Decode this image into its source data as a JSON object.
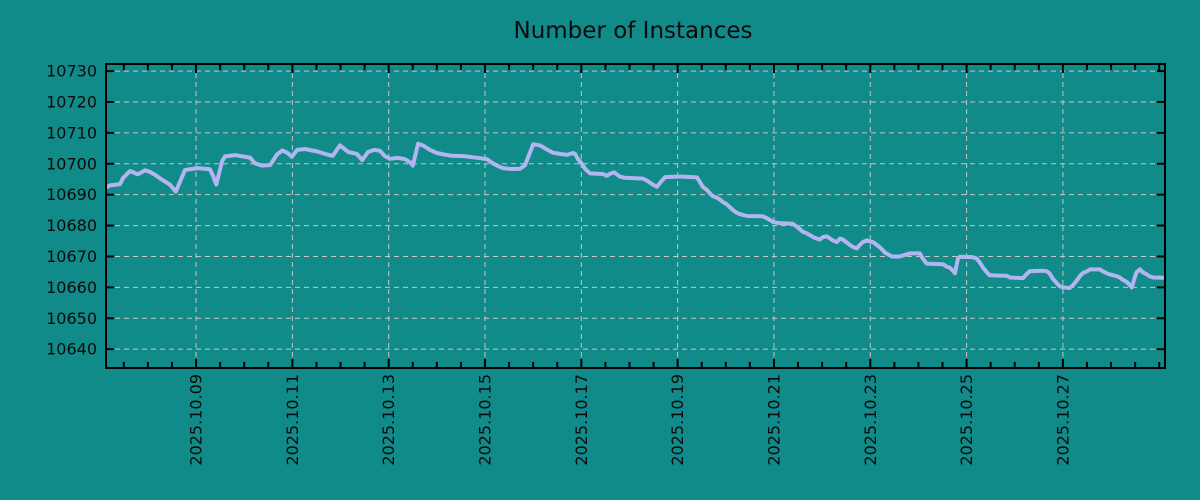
{
  "chart_data": {
    "type": "line",
    "title": "Number of Instances",
    "legend": "none",
    "grid": "dashed",
    "colors": {
      "background": "#118a8a",
      "line": "#b2b5ef",
      "grid": "#c6c6c6",
      "axis": "#000000",
      "text": "#0b0b0b"
    },
    "x_axis": {
      "unit": "day-of-october-2025",
      "tick_labels": [
        "2025.10.09",
        "2025.10.11",
        "2025.10.13",
        "2025.10.15",
        "2025.10.17",
        "2025.10.19",
        "2025.10.21",
        "2025.10.23",
        "2025.10.25",
        "2025.10.27"
      ],
      "tick_days": [
        9,
        11,
        13,
        15,
        17,
        19,
        21,
        23,
        25,
        27
      ],
      "minor_tick_interval_days": 0.5,
      "range_days": [
        7.13,
        29.12
      ]
    },
    "y_axis": {
      "tick_values": [
        10640,
        10650,
        10660,
        10670,
        10680,
        10690,
        10700,
        10710,
        10720,
        10730
      ],
      "range": [
        10633.9,
        10732.3
      ]
    },
    "series": [
      {
        "name": "",
        "color": "#b2b5ef",
        "points": [
          [
            7.13,
            10692.3
          ],
          [
            7.21,
            10693.0
          ],
          [
            7.42,
            10693.4
          ],
          [
            7.48,
            10695.3
          ],
          [
            7.57,
            10696.8
          ],
          [
            7.63,
            10697.6
          ],
          [
            7.69,
            10697.3
          ],
          [
            7.78,
            10696.6
          ],
          [
            7.84,
            10697.0
          ],
          [
            7.94,
            10697.9
          ],
          [
            8.04,
            10697.4
          ],
          [
            8.15,
            10696.4
          ],
          [
            8.25,
            10695.3
          ],
          [
            8.36,
            10694.2
          ],
          [
            8.46,
            10693.2
          ],
          [
            8.52,
            10692.1
          ],
          [
            8.58,
            10691.0
          ],
          [
            8.71,
            10695.8
          ],
          [
            8.77,
            10698.0
          ],
          [
            9.03,
            10698.6
          ],
          [
            9.29,
            10698.2
          ],
          [
            9.35,
            10696.2
          ],
          [
            9.42,
            10693.3
          ],
          [
            9.54,
            10700.8
          ],
          [
            9.6,
            10702.4
          ],
          [
            9.81,
            10702.8
          ],
          [
            10.12,
            10702.0
          ],
          [
            10.22,
            10700.2
          ],
          [
            10.37,
            10699.4
          ],
          [
            10.54,
            10699.6
          ],
          [
            10.68,
            10703.0
          ],
          [
            10.79,
            10704.3
          ],
          [
            10.89,
            10703.6
          ],
          [
            10.99,
            10702.3
          ],
          [
            11.1,
            10704.5
          ],
          [
            11.26,
            10704.8
          ],
          [
            11.41,
            10704.3
          ],
          [
            11.51,
            10704.0
          ],
          [
            11.72,
            10703.0
          ],
          [
            11.84,
            10702.6
          ],
          [
            11.99,
            10706.0
          ],
          [
            12.16,
            10703.8
          ],
          [
            12.34,
            10703.2
          ],
          [
            12.45,
            10701.2
          ],
          [
            12.57,
            10703.8
          ],
          [
            12.7,
            10704.5
          ],
          [
            12.82,
            10704.2
          ],
          [
            12.92,
            10702.5
          ],
          [
            13.03,
            10701.6
          ],
          [
            13.19,
            10701.9
          ],
          [
            13.34,
            10701.5
          ],
          [
            13.44,
            10700.5
          ],
          [
            13.5,
            10699.4
          ],
          [
            13.61,
            10706.5
          ],
          [
            13.73,
            10705.8
          ],
          [
            13.86,
            10704.5
          ],
          [
            14.0,
            10703.5
          ],
          [
            14.15,
            10703.0
          ],
          [
            14.31,
            10702.6
          ],
          [
            14.56,
            10702.5
          ],
          [
            14.75,
            10702.1
          ],
          [
            14.9,
            10701.8
          ],
          [
            15.04,
            10701.5
          ],
          [
            15.15,
            10700.3
          ],
          [
            15.25,
            10699.4
          ],
          [
            15.37,
            10698.6
          ],
          [
            15.56,
            10698.3
          ],
          [
            15.73,
            10698.4
          ],
          [
            15.83,
            10699.5
          ],
          [
            15.93,
            10703.5
          ],
          [
            16.0,
            10706.3
          ],
          [
            16.14,
            10706.0
          ],
          [
            16.29,
            10704.6
          ],
          [
            16.41,
            10703.6
          ],
          [
            16.56,
            10703.2
          ],
          [
            16.7,
            10702.9
          ],
          [
            16.83,
            10703.5
          ],
          [
            16.87,
            10703.2
          ],
          [
            16.93,
            10701.5
          ],
          [
            17.01,
            10700.0
          ],
          [
            17.08,
            10698.3
          ],
          [
            17.18,
            10696.9
          ],
          [
            17.45,
            10696.7
          ],
          [
            17.53,
            10696.1
          ],
          [
            17.61,
            10696.9
          ],
          [
            17.68,
            10697.2
          ],
          [
            17.8,
            10695.9
          ],
          [
            17.89,
            10695.5
          ],
          [
            18.28,
            10695.2
          ],
          [
            18.38,
            10694.4
          ],
          [
            18.49,
            10693.2
          ],
          [
            18.57,
            10692.6
          ],
          [
            18.65,
            10694.1
          ],
          [
            18.74,
            10695.7
          ],
          [
            19.05,
            10695.9
          ],
          [
            19.4,
            10695.6
          ],
          [
            19.46,
            10694.2
          ],
          [
            19.52,
            10692.6
          ],
          [
            19.61,
            10691.5
          ],
          [
            19.67,
            10690.4
          ],
          [
            19.73,
            10689.5
          ],
          [
            19.81,
            10689.1
          ],
          [
            19.88,
            10688.4
          ],
          [
            19.94,
            10687.6
          ],
          [
            20.02,
            10686.9
          ],
          [
            20.08,
            10686.0
          ],
          [
            20.15,
            10685.0
          ],
          [
            20.23,
            10684.1
          ],
          [
            20.29,
            10683.7
          ],
          [
            20.44,
            10683.1
          ],
          [
            20.77,
            10683.0
          ],
          [
            20.85,
            10682.4
          ],
          [
            20.92,
            10681.8
          ],
          [
            20.98,
            10681.2
          ],
          [
            21.06,
            10680.9
          ],
          [
            21.12,
            10680.8
          ],
          [
            21.39,
            10680.6
          ],
          [
            21.48,
            10679.6
          ],
          [
            21.54,
            10678.8
          ],
          [
            21.6,
            10678.0
          ],
          [
            21.68,
            10677.5
          ],
          [
            21.75,
            10676.9
          ],
          [
            21.81,
            10676.3
          ],
          [
            21.89,
            10675.8
          ],
          [
            21.95,
            10675.5
          ],
          [
            22.02,
            10676.3
          ],
          [
            22.1,
            10676.5
          ],
          [
            22.22,
            10675.2
          ],
          [
            22.31,
            10674.7
          ],
          [
            22.37,
            10675.8
          ],
          [
            22.43,
            10675.5
          ],
          [
            22.58,
            10673.7
          ],
          [
            22.64,
            10673.1
          ],
          [
            22.72,
            10672.6
          ],
          [
            22.78,
            10673.7
          ],
          [
            22.85,
            10674.7
          ],
          [
            22.93,
            10675.2
          ],
          [
            23.06,
            10674.6
          ],
          [
            23.2,
            10673.0
          ],
          [
            23.31,
            10671.2
          ],
          [
            23.45,
            10670.0
          ],
          [
            23.61,
            10670.0
          ],
          [
            23.82,
            10671.0
          ],
          [
            24.03,
            10671.0
          ],
          [
            24.09,
            10669.3
          ],
          [
            24.17,
            10667.7
          ],
          [
            24.51,
            10667.5
          ],
          [
            24.59,
            10666.7
          ],
          [
            24.65,
            10666.4
          ],
          [
            24.72,
            10665.3
          ],
          [
            24.76,
            10664.6
          ],
          [
            24.82,
            10669.3
          ],
          [
            24.86,
            10669.9
          ],
          [
            25.13,
            10669.8
          ],
          [
            25.21,
            10669.3
          ],
          [
            25.27,
            10668.1
          ],
          [
            25.34,
            10666.4
          ],
          [
            25.42,
            10664.9
          ],
          [
            25.48,
            10663.9
          ],
          [
            25.84,
            10663.7
          ],
          [
            25.9,
            10663.2
          ],
          [
            26.17,
            10663.0
          ],
          [
            26.25,
            10664.4
          ],
          [
            26.31,
            10665.2
          ],
          [
            26.58,
            10665.4
          ],
          [
            26.67,
            10665.2
          ],
          [
            26.73,
            10664.4
          ],
          [
            26.79,
            10662.8
          ],
          [
            26.87,
            10661.4
          ],
          [
            26.93,
            10660.4
          ],
          [
            27.0,
            10660.0
          ],
          [
            27.14,
            10659.8
          ],
          [
            27.21,
            10660.7
          ],
          [
            27.29,
            10662.3
          ],
          [
            27.35,
            10663.6
          ],
          [
            27.41,
            10664.6
          ],
          [
            27.5,
            10665.2
          ],
          [
            27.56,
            10665.8
          ],
          [
            27.77,
            10665.8
          ],
          [
            27.83,
            10665.2
          ],
          [
            27.91,
            10664.6
          ],
          [
            27.97,
            10664.2
          ],
          [
            28.12,
            10663.6
          ],
          [
            28.18,
            10663.2
          ],
          [
            28.24,
            10662.5
          ],
          [
            28.33,
            10661.7
          ],
          [
            28.39,
            10660.7
          ],
          [
            28.43,
            10660.0
          ],
          [
            28.49,
            10663.2
          ],
          [
            28.53,
            10664.9
          ],
          [
            28.6,
            10665.8
          ],
          [
            28.66,
            10664.9
          ],
          [
            28.74,
            10664.2
          ],
          [
            28.8,
            10663.6
          ],
          [
            28.87,
            10663.2
          ],
          [
            29.12,
            10663.1
          ]
        ]
      }
    ]
  }
}
